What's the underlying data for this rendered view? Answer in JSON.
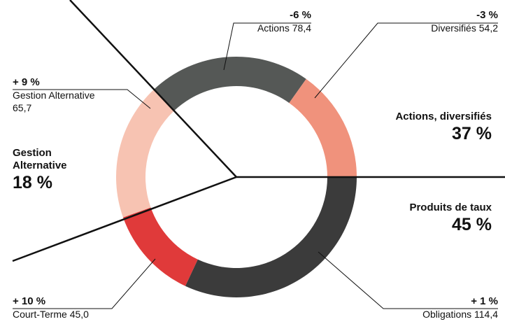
{
  "chart_data": {
    "type": "donut",
    "segments": [
      {
        "name": "Obligations",
        "value": 114.4,
        "value_label": "114,4",
        "change": "+ 1 %",
        "color": "#3b3b3b"
      },
      {
        "name": "Court-Terme",
        "value": 45.0,
        "value_label": "45,0",
        "change": "+ 10 %",
        "color": "#e03a3a"
      },
      {
        "name": "Gestion Alternative",
        "value": 65.7,
        "value_label": "65,7",
        "change": "+ 9 %",
        "color": "#f7c3b2"
      },
      {
        "name": "Actions",
        "value": 78.4,
        "value_label": "78,4",
        "change": "-6 %",
        "color": "#555856"
      },
      {
        "name": "Diversifiés",
        "value": 54.2,
        "value_label": "54,2",
        "change": "-3 %",
        "color": "#f0927c"
      }
    ],
    "groups": [
      {
        "name": "Actions, diversifiés",
        "value": 37,
        "value_label": "37 %"
      },
      {
        "name": "Produits de taux",
        "value": 45,
        "value_label": "45 %"
      },
      {
        "name": "Gestion Alternative",
        "value": 18,
        "value_label": "18 %"
      }
    ]
  }
}
